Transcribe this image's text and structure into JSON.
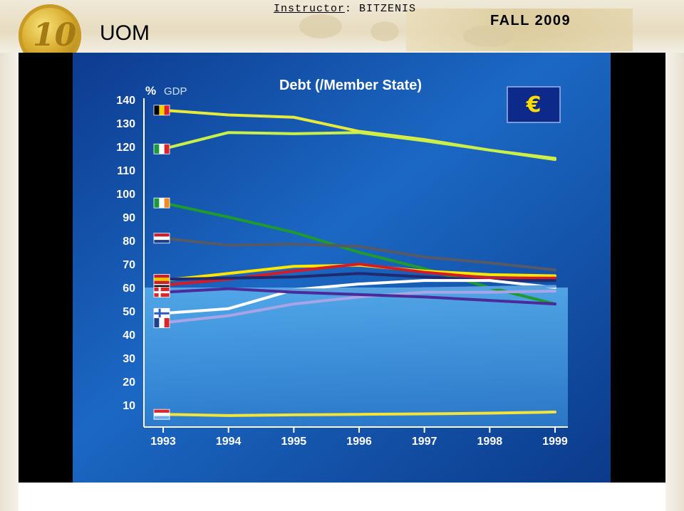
{
  "header": {
    "logo_text": "UOM",
    "coin_value": "10",
    "instructor_label": "Instructor",
    "instructor_name": "BITZENIS",
    "term": "FALL 2009"
  },
  "chart_data": {
    "type": "line",
    "title": "Debt (/Member State)",
    "y_unit_symbol": "%",
    "y_unit_label": "GDP",
    "x": [
      "1993",
      "1994",
      "1995",
      "1996",
      "1997",
      "1998",
      "1999"
    ],
    "yticks": [
      10,
      20,
      30,
      40,
      50,
      60,
      70,
      80,
      90,
      100,
      110,
      120,
      130,
      140
    ],
    "ylim": [
      0,
      140
    ],
    "grid": false,
    "legend": "flags at start of each line",
    "emblem": "euro-emblem",
    "series": [
      {
        "flag": "belgium",
        "color": "#e6ea3c",
        "values": [
          135.5,
          133.5,
          132.5,
          126.5,
          123,
          118.5,
          115
        ]
      },
      {
        "flag": "italy",
        "color": "#c9f04a",
        "values": [
          119,
          126,
          125.5,
          126,
          122.5,
          118.5,
          114.5
        ]
      },
      {
        "flag": "ireland",
        "color": "#1f9a2e",
        "values": [
          96,
          90,
          83.5,
          75,
          68,
          60,
          53
        ]
      },
      {
        "flag": "netherlands",
        "color": "#555a66",
        "values": [
          81,
          78,
          78.5,
          77.5,
          73,
          70.5,
          67.5
        ]
      },
      {
        "flag": "portugal",
        "color": "#ffe600",
        "values": [
          63,
          66,
          69,
          69.5,
          67,
          65.5,
          65
        ]
      },
      {
        "flag": "austria",
        "color": "#d41c24",
        "values": [
          61,
          63.5,
          67,
          70,
          66.5,
          64,
          64
        ]
      },
      {
        "flag": "spain",
        "color": "#1f2b6e",
        "values": [
          63.5,
          64,
          64.5,
          66,
          64.5,
          63,
          63
        ]
      },
      {
        "flag": "finland",
        "color": "#ffffff",
        "values": [
          49,
          51,
          59,
          61.5,
          63,
          63,
          60
        ]
      },
      {
        "flag": "germany",
        "color": "#5aa0e0",
        "values": [
          59,
          59,
          59,
          59,
          59.5,
          60,
          60.5
        ]
      },
      {
        "flag": "france",
        "color": "#a9a4e6",
        "values": [
          45,
          48,
          53,
          56,
          58,
          58,
          58.5
        ]
      },
      {
        "flag": "denmark",
        "color": "#4b2a9a",
        "values": [
          58,
          59.5,
          58,
          57,
          56,
          54.5,
          53
        ]
      },
      {
        "flag": "luxembourg",
        "color": "#f2e43a",
        "values": [
          6,
          5.5,
          5.8,
          6,
          6.2,
          6.5,
          7
        ]
      }
    ]
  }
}
